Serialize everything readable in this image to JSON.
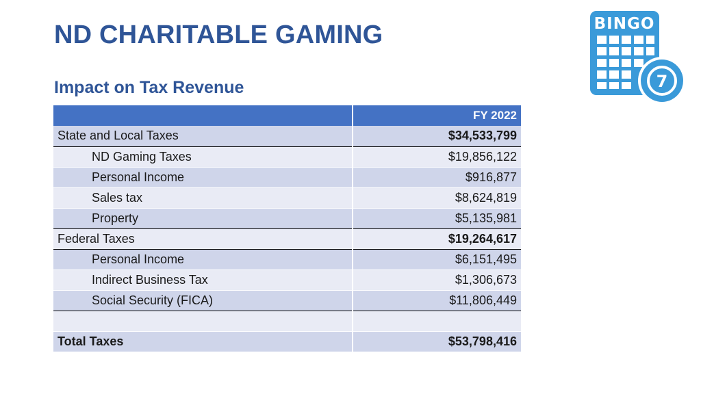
{
  "title": "ND CHARITABLE GAMING",
  "subtitle": "Impact on Tax Revenue",
  "logo": {
    "icon": "bingo-card-icon",
    "text": "BINGO",
    "ball_number": "7",
    "color": "#3a9ad9"
  },
  "table": {
    "header": [
      "",
      "FY 2022"
    ],
    "rows": [
      {
        "label": "State and Local Taxes",
        "value": "$34,533,799"
      },
      {
        "label": "ND Gaming Taxes",
        "value": "$19,856,122"
      },
      {
        "label": "Personal Income",
        "value": "$916,877"
      },
      {
        "label": "Sales tax",
        "value": "$8,624,819"
      },
      {
        "label": "Property",
        "value": "$5,135,981"
      },
      {
        "label": "Federal Taxes",
        "value": "$19,264,617"
      },
      {
        "label": "Personal Income",
        "value": "$6,151,495"
      },
      {
        "label": "Indirect Business Tax",
        "value": "$1,306,673"
      },
      {
        "label": "Social Security (FICA)",
        "value": "$11,806,449"
      },
      {
        "label": "",
        "value": ""
      },
      {
        "label": "Total Taxes",
        "value": "$53,798,416"
      }
    ]
  },
  "colors": {
    "title": "#2f5597",
    "header_fill": "#4472c4",
    "band_dark": "#cfd5ea",
    "band_light": "#e9ebf5"
  }
}
